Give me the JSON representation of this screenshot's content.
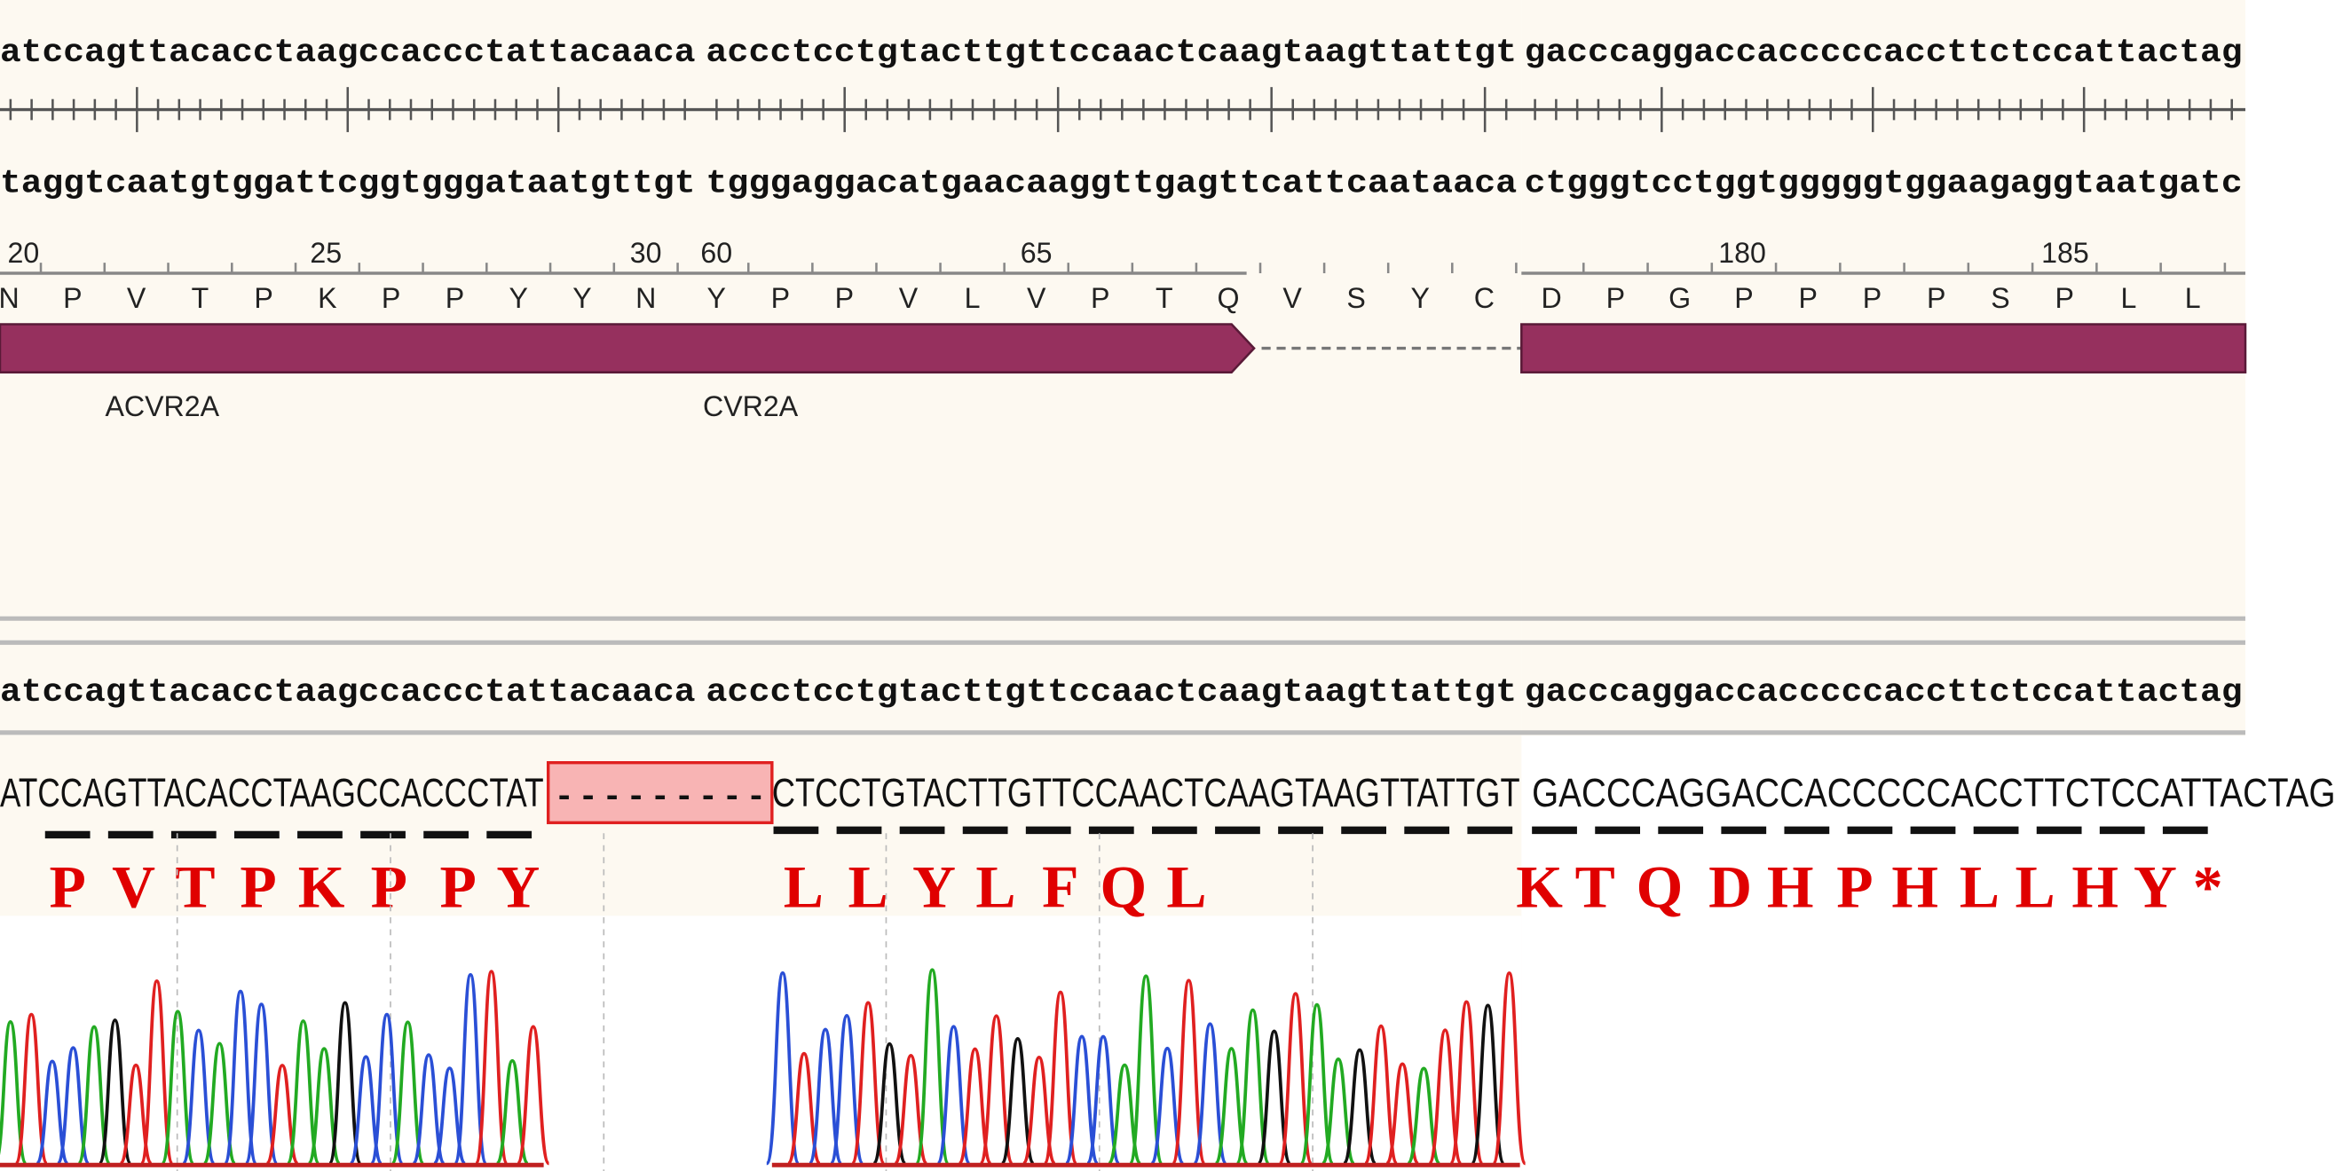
{
  "panels": [
    {
      "top_strand": "atccagttacacctaagccaccctattacaaca",
      "bottom_strand": "taggtcaatgtggattcggtgggataatgttgt",
      "ruler_numbers": [
        20,
        25,
        30
      ],
      "residues": [
        "N",
        "P",
        "V",
        "T",
        "P",
        "K",
        "P",
        "P",
        "Y",
        "Y",
        "N"
      ],
      "feature_label": "ACVR2A"
    },
    {
      "top_strand": "accctcctgtacttgttccaactcaagtaagttattgt",
      "bottom_strand": "tgggaggacatgaacaaggttgagttcattcaataaca",
      "ruler_numbers": [
        60,
        65
      ],
      "residues": [
        "Y",
        "P",
        "P",
        "V",
        "L",
        "V",
        "P",
        "T",
        "Q",
        "V",
        "S",
        "Y",
        "C"
      ],
      "feature_label": "CVR2A"
    },
    {
      "top_strand": "gacccaggaccacccccaccttctccattactag",
      "bottom_strand": "ctgggtcctggtgggggtggaagaggtaatgatc",
      "ruler_numbers": [
        180,
        185
      ],
      "residues": [
        "D",
        "P",
        "G",
        "P",
        "P",
        "P",
        "P",
        "S",
        "P",
        "L",
        "L"
      ]
    }
  ],
  "alignment": {
    "sample": [
      "ATCCAGTTACACCTAAGCCACCCTAT",
      "CTCCTGTACTTGTTCCAACTCAAGTAAGTTATTGT",
      "GACCCAGGACCACCCCCACCTTCTCCATTACTAG"
    ],
    "deletion": "---------",
    "translation": [
      [
        "P",
        "V",
        "T",
        "P",
        "K",
        "P",
        "P",
        "Y"
      ],
      [
        "L",
        "L",
        "Y",
        "L",
        "F",
        "Q",
        "L"
      ],
      [
        "K",
        "T",
        "Q",
        "D",
        "H",
        "P",
        "H",
        "L",
        "L",
        "H",
        "Y",
        "*"
      ]
    ]
  }
}
